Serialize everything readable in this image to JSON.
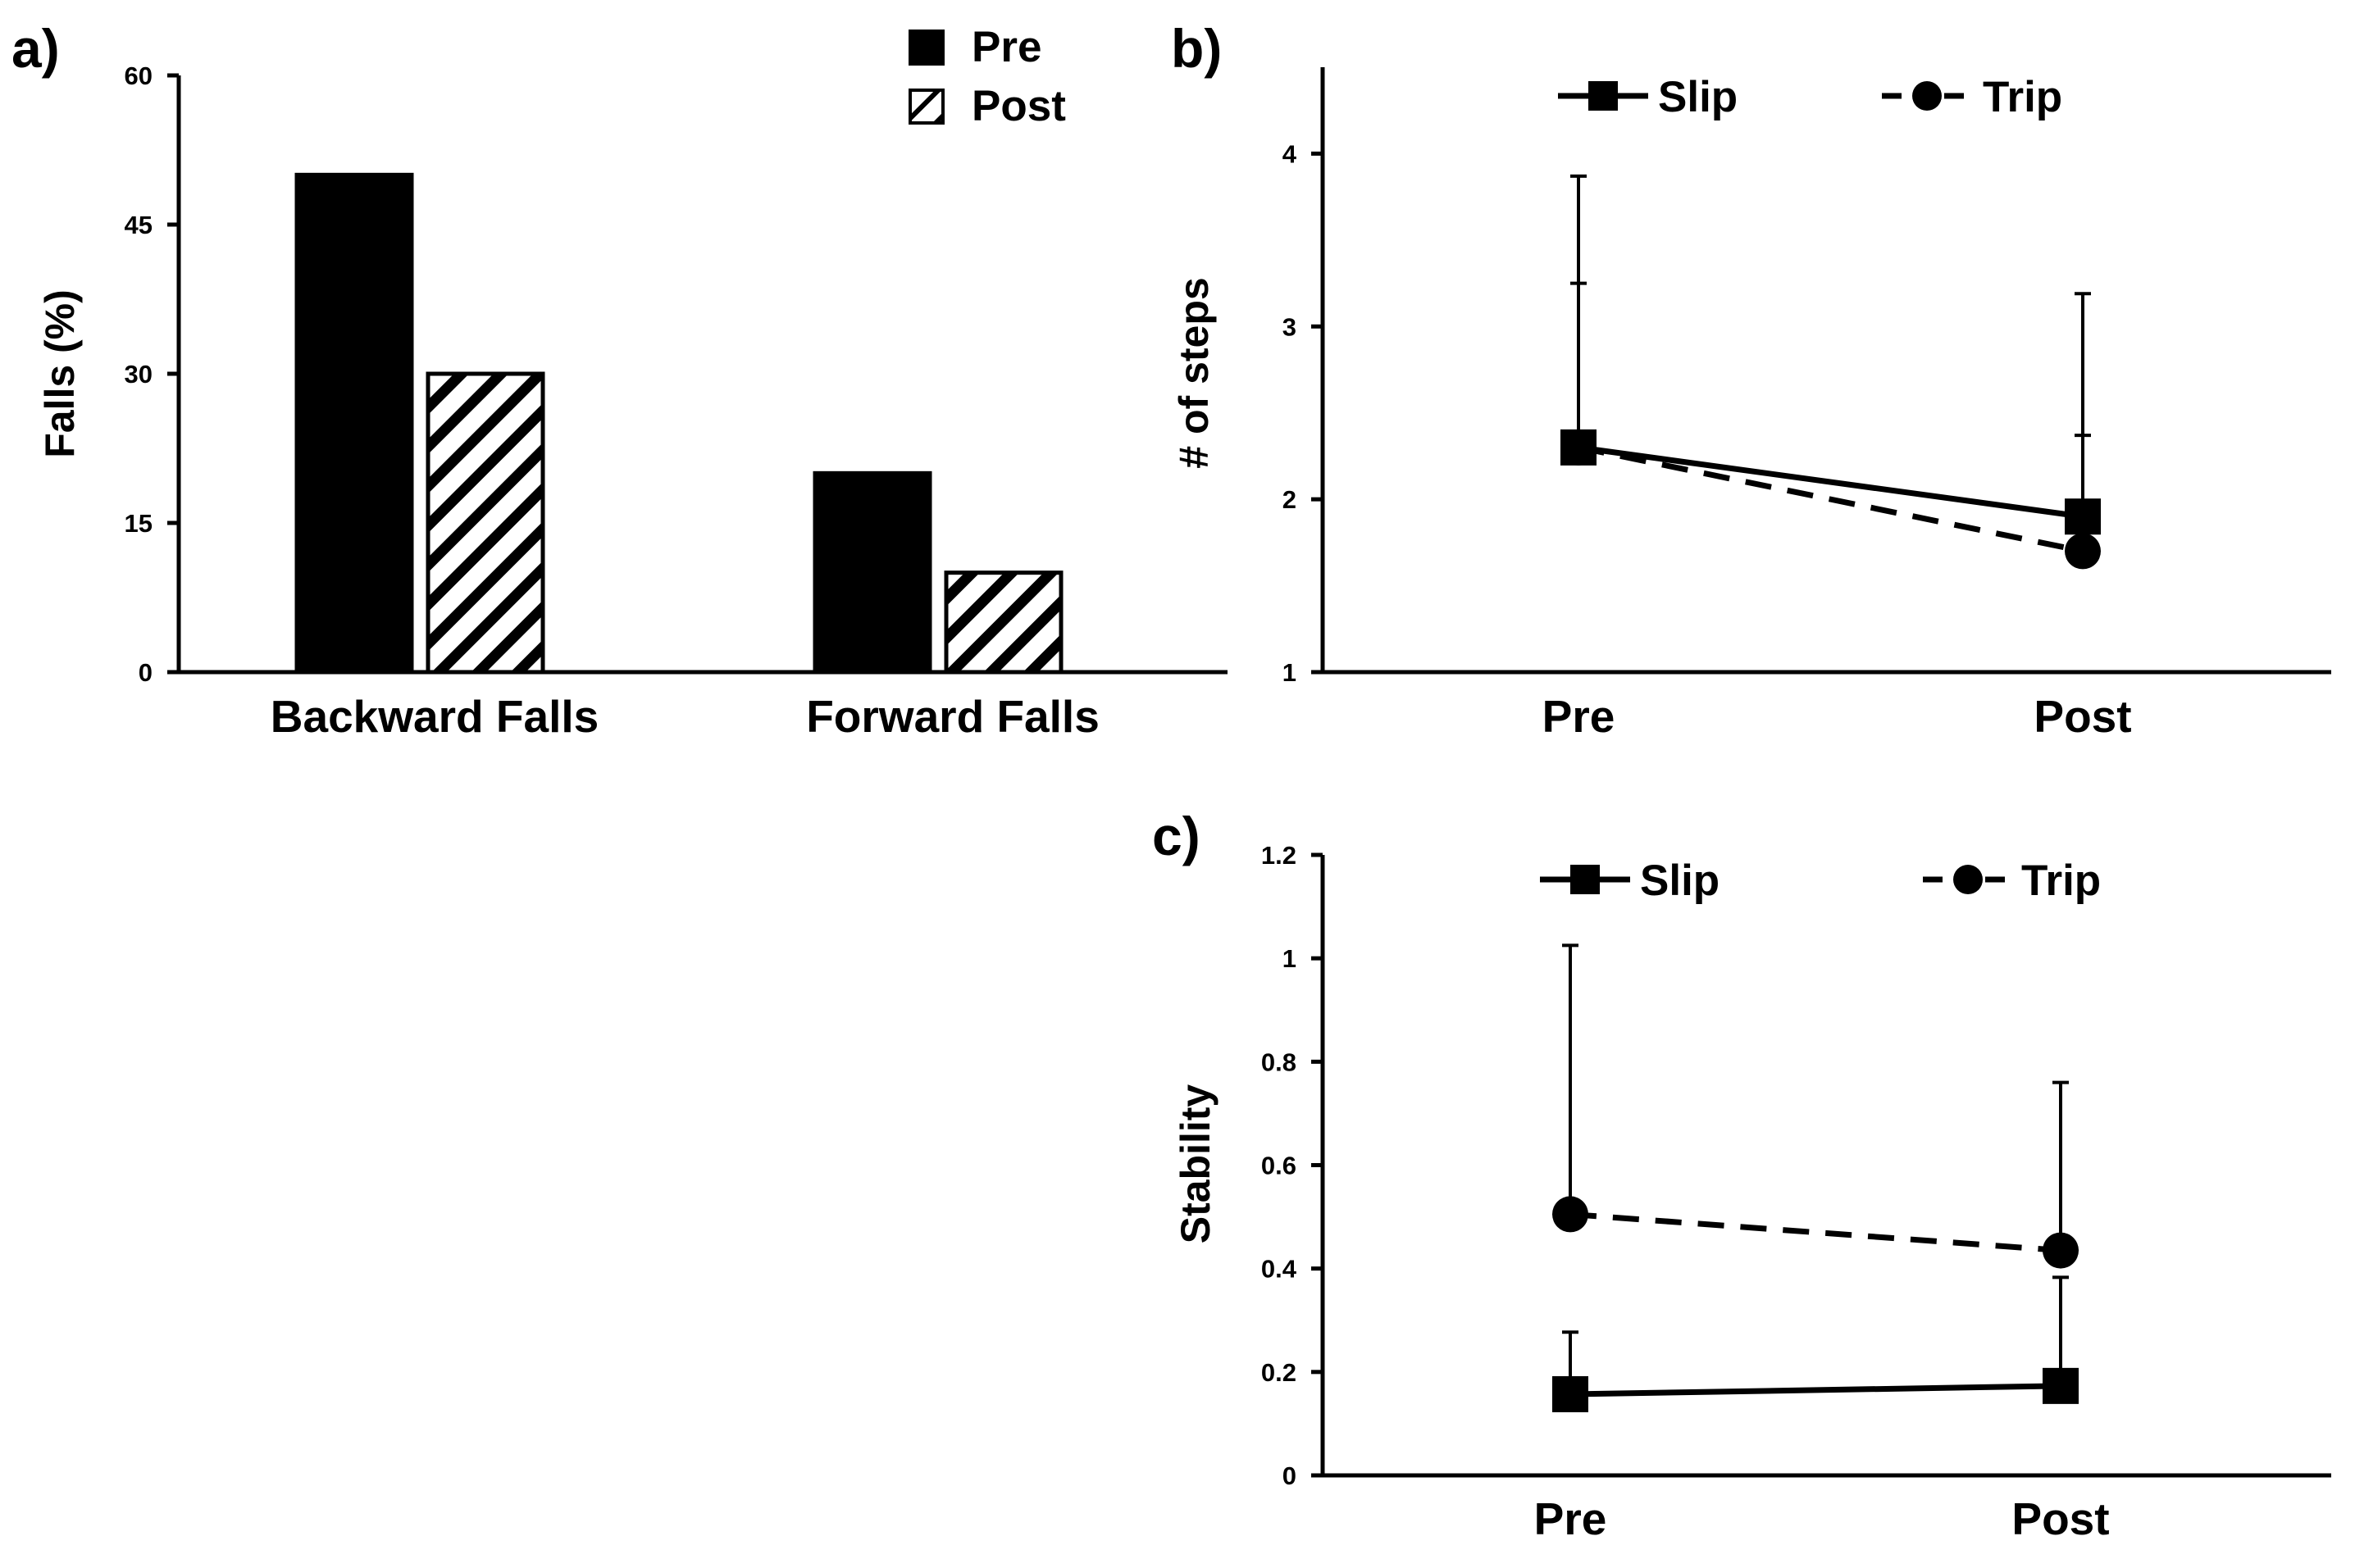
{
  "figure": {
    "panels": {
      "a": {
        "label": "a)"
      },
      "b": {
        "label": "b)"
      },
      "c": {
        "label": "c)"
      }
    }
  },
  "chart_data": [
    {
      "id": "a",
      "type": "bar",
      "categories": [
        "Backward Falls",
        "Forward Falls"
      ],
      "series": [
        {
          "name": "Pre",
          "values": [
            50,
            20
          ],
          "fill": "#000000"
        },
        {
          "name": "Post",
          "values": [
            30,
            10
          ],
          "fill": "hatched"
        }
      ],
      "title": "",
      "xlabel": "",
      "ylabel": "Falls (%)",
      "ylim": [
        0,
        60
      ],
      "yticks": [
        0,
        15,
        30,
        45,
        60
      ],
      "ytick_labels": [
        "0",
        "15",
        "30",
        "45",
        "60"
      ],
      "legend": "top-right",
      "grid": false
    },
    {
      "id": "b",
      "type": "line",
      "categories": [
        "Pre",
        "Post"
      ],
      "series": [
        {
          "name": "Slip",
          "marker": "square",
          "linestyle": "solid",
          "values": [
            2.3,
            1.9
          ],
          "error_upper": [
            1.57,
            1.29
          ]
        },
        {
          "name": "Trip",
          "marker": "circle",
          "linestyle": "dashed",
          "values": [
            2.3,
            1.7
          ],
          "error_upper": [
            0.95,
            0.67
          ]
        }
      ],
      "title": "",
      "xlabel": "",
      "ylabel": "# of steps",
      "ylim": [
        1,
        4.5
      ],
      "yticks": [
        1,
        2,
        3,
        4
      ],
      "ytick_labels": [
        "1",
        "2",
        "3",
        "4"
      ],
      "legend": "top",
      "grid": false
    },
    {
      "id": "c",
      "type": "line",
      "categories": [
        "Pre",
        "Post"
      ],
      "series": [
        {
          "name": "Slip",
          "marker": "square",
          "linestyle": "solid",
          "values": [
            0.157,
            0.173
          ],
          "error_upper": [
            0.12,
            0.21
          ]
        },
        {
          "name": "Trip",
          "marker": "circle",
          "linestyle": "dashed",
          "values": [
            0.505,
            0.435
          ],
          "error_upper": [
            0.52,
            0.325
          ]
        }
      ],
      "title": "",
      "xlabel": "",
      "ylabel": "Stability",
      "ylim": [
        0,
        1.2
      ],
      "yticks": [
        0,
        0.2,
        0.4,
        0.6,
        0.8,
        1,
        1.2
      ],
      "ytick_labels": [
        "0",
        "0.2",
        "0.4",
        "0.6",
        "0.8",
        "1",
        "1.2"
      ],
      "legend": "top",
      "grid": false
    }
  ]
}
